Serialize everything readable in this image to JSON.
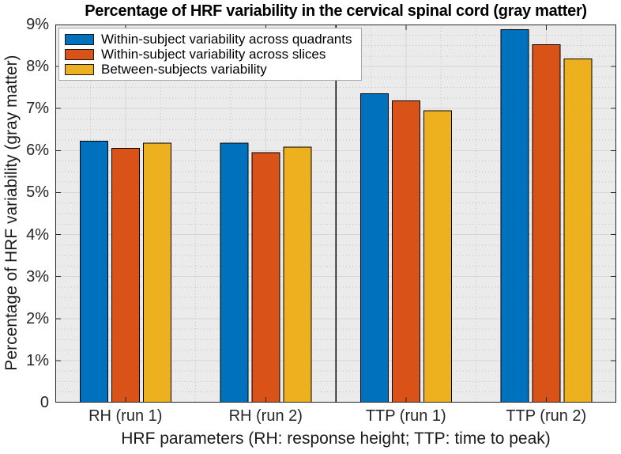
{
  "chart_data": {
    "type": "bar",
    "title": "Percentage of HRF variability in the cervical spinal cord (gray matter)",
    "xlabel": "HRF parameters (RH: response height; TTP: time to peak)",
    "ylabel": "Percentage of HRF variability (gray matter)",
    "categories": [
      "RH (run 1)",
      "RH (run 2)",
      "TTP (run 1)",
      "TTP (run 2)"
    ],
    "series": [
      {
        "name": "Within-subject variability across quadrants",
        "color": "#0072BD",
        "values": [
          6.22,
          6.18,
          7.35,
          8.88
        ]
      },
      {
        "name": "Within-subject variability across slices",
        "color": "#D95319",
        "values": [
          6.05,
          5.95,
          7.18,
          8.52
        ]
      },
      {
        "name": "Between-subjects variability",
        "color": "#EDB120",
        "values": [
          6.18,
          6.08,
          6.95,
          8.18
        ]
      }
    ],
    "ylim": [
      0,
      9
    ],
    "ytick_values": [
      0,
      1,
      2,
      3,
      4,
      5,
      6,
      7,
      8,
      9
    ],
    "ytick_labels": [
      "0",
      "1%",
      "2%",
      "3%",
      "4%",
      "5%",
      "6%",
      "7%",
      "8%",
      "9%"
    ],
    "grid": true,
    "minor_grid": true,
    "legend_position": "northwest",
    "separator_after_category": 2,
    "style": {
      "plot_background": "#ebebeb",
      "major_grid_color": "#d6d6d6",
      "minor_grid_color": "#c2c2c2",
      "axis_color": "#262626",
      "bar_edge_color": "#000000",
      "separator_color": "#000000"
    }
  }
}
